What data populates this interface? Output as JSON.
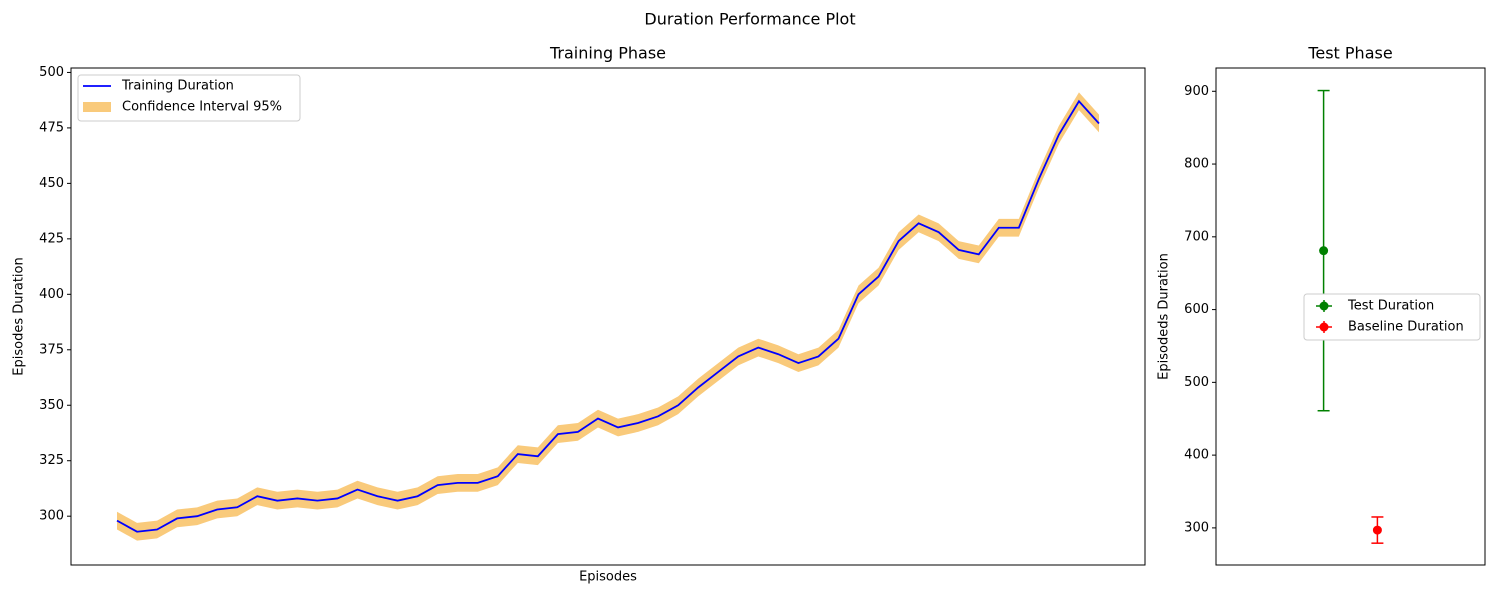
{
  "title": "Duration Performance Plot",
  "chart_data": [
    {
      "type": "line",
      "title": "Training Phase",
      "xlabel": "Episodes",
      "ylabel": "Episodes Duration",
      "ylim": [
        278,
        502
      ],
      "yticks": [
        300,
        325,
        350,
        375,
        400,
        425,
        450,
        475,
        500
      ],
      "legend": "upper left",
      "series": [
        {
          "name": "Training Duration",
          "color": "#0000ff",
          "values": [
            298,
            293,
            294,
            299,
            300,
            303,
            304,
            309,
            307,
            308,
            307,
            308,
            312,
            309,
            307,
            309,
            314,
            315,
            315,
            318,
            328,
            327,
            337,
            338,
            344,
            340,
            342,
            345,
            350,
            358,
            365,
            372,
            376,
            373,
            369,
            372,
            380,
            400,
            408,
            424,
            432,
            428,
            420,
            418,
            430,
            430,
            452,
            472,
            487,
            477
          ]
        },
        {
          "name": "Confidence Interval 95%",
          "color": "#f5a623",
          "lower": [
            294,
            289,
            290,
            295,
            296,
            299,
            300,
            305,
            303,
            304,
            303,
            304,
            308,
            305,
            303,
            305,
            310,
            311,
            311,
            314,
            324,
            323,
            333,
            334,
            340,
            336,
            338,
            341,
            346,
            354,
            361,
            368,
            372,
            369,
            365,
            368,
            376,
            396,
            404,
            420,
            428,
            424,
            416,
            414,
            426,
            426,
            448,
            468,
            483,
            473
          ],
          "upper": [
            302,
            297,
            298,
            303,
            304,
            307,
            308,
            313,
            311,
            312,
            311,
            312,
            316,
            313,
            311,
            313,
            318,
            319,
            319,
            322,
            332,
            331,
            341,
            342,
            348,
            344,
            346,
            349,
            354,
            362,
            369,
            376,
            380,
            377,
            373,
            376,
            384,
            404,
            412,
            428,
            436,
            432,
            424,
            422,
            434,
            434,
            456,
            476,
            491,
            481
          ]
        }
      ]
    },
    {
      "type": "errorbar",
      "title": "Test Phase",
      "ylabel": "Episodeds Duration",
      "xlim": [
        -2,
        3
      ],
      "ylim": [
        249,
        932
      ],
      "yticks": [
        300,
        400,
        500,
        600,
        700,
        800,
        900
      ],
      "legend": "center right",
      "series": [
        {
          "name": "Test Duration",
          "color": "#008000",
          "x": [
            0
          ],
          "values": [
            681
          ],
          "errors": [
            220
          ]
        },
        {
          "name": "Baseline Duration",
          "color": "#ff0000",
          "x": [
            1
          ],
          "values": [
            297
          ],
          "errors": [
            18
          ]
        }
      ]
    }
  ]
}
